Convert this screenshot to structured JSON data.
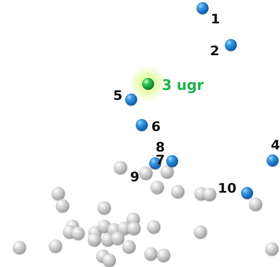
{
  "colors": {
    "background": "#ffffff",
    "highlight_label": "#1fb54a",
    "label": "#111111",
    "marker_blue": "#1466b8",
    "marker_gray": "#b9b9b9",
    "marker_green": "#118a33"
  },
  "labels": {
    "l1": "1",
    "l2": "2",
    "l3": "3 ugr",
    "l4": "4",
    "l5": "5",
    "l6": "6",
    "l7": "7",
    "l8": "8",
    "l9": "9",
    "l10": "10"
  }
}
